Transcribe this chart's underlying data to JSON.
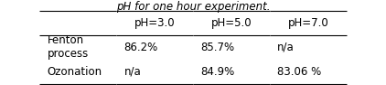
{
  "title": "pH for one hour experiment.",
  "col_headers": [
    "pH=3.0",
    "pH=5.0",
    "pH=7.0"
  ],
  "row_labels": [
    "Fenton\nprocess",
    "Ozonation"
  ],
  "cell_data": [
    [
      "86.2%",
      "85.7%",
      "n/a"
    ],
    [
      "n/a",
      "84.9%",
      "83.06 %"
    ]
  ],
  "background_color": "#ffffff",
  "font_size": 8.5,
  "title_font_size": 8.5
}
